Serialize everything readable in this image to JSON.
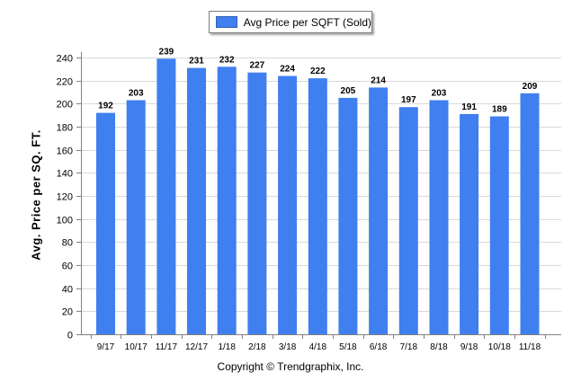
{
  "chart_data": {
    "type": "bar",
    "categories": [
      "9/17",
      "10/17",
      "11/17",
      "12/17",
      "1/18",
      "2/18",
      "3/18",
      "4/18",
      "5/18",
      "6/18",
      "7/18",
      "8/18",
      "9/18",
      "10/18",
      "11/18"
    ],
    "series": [
      {
        "name": "Avg Price per SQFT (Sold)",
        "values": [
          192,
          203,
          239,
          231,
          232,
          227,
          224,
          222,
          205,
          214,
          197,
          203,
          191,
          189,
          209
        ],
        "color": "#3f7fef"
      }
    ],
    "ylabel": "Avg. Price per SQ. FT.",
    "xlabel": "",
    "ylim": [
      0,
      240
    ],
    "yticks": [
      0,
      20,
      40,
      60,
      80,
      100,
      120,
      140,
      160,
      180,
      200,
      220,
      240
    ],
    "grid": true,
    "legend_position": "top-center",
    "data_labels": true
  },
  "footer": {
    "copyright": "Copyright © Trendgraphix, Inc."
  },
  "colors": {
    "bar": "#3f7fef",
    "grid": "#d9d9d9",
    "axis": "#808080"
  }
}
